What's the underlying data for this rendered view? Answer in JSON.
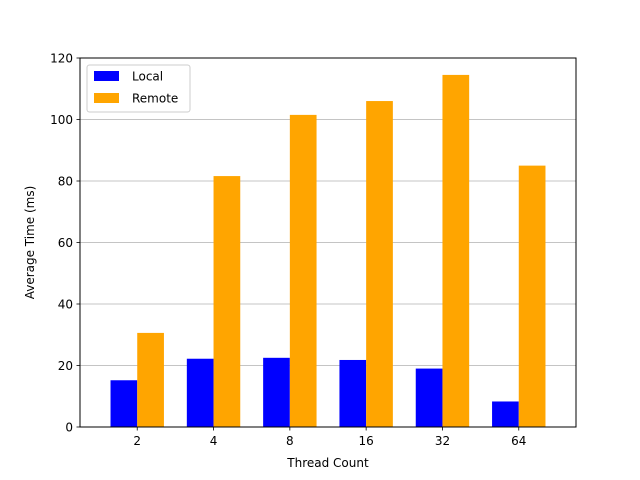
{
  "chart_data": {
    "type": "bar",
    "title": "",
    "xlabel": "Thread Count",
    "ylabel": "Average Time (ms)",
    "categories": [
      "2",
      "4",
      "8",
      "16",
      "32",
      "64"
    ],
    "series": [
      {
        "name": "Local",
        "color": "#0000ff",
        "values": [
          15.2,
          22.2,
          22.5,
          21.8,
          19.0,
          8.3
        ]
      },
      {
        "name": "Remote",
        "color": "#ffa500",
        "values": [
          30.6,
          81.6,
          101.5,
          106.0,
          114.5,
          85.0
        ]
      }
    ],
    "ylim": [
      0,
      120
    ],
    "yticks": [
      0,
      20,
      40,
      60,
      80,
      100,
      120
    ],
    "grid": "y",
    "legend": "top-left"
  }
}
